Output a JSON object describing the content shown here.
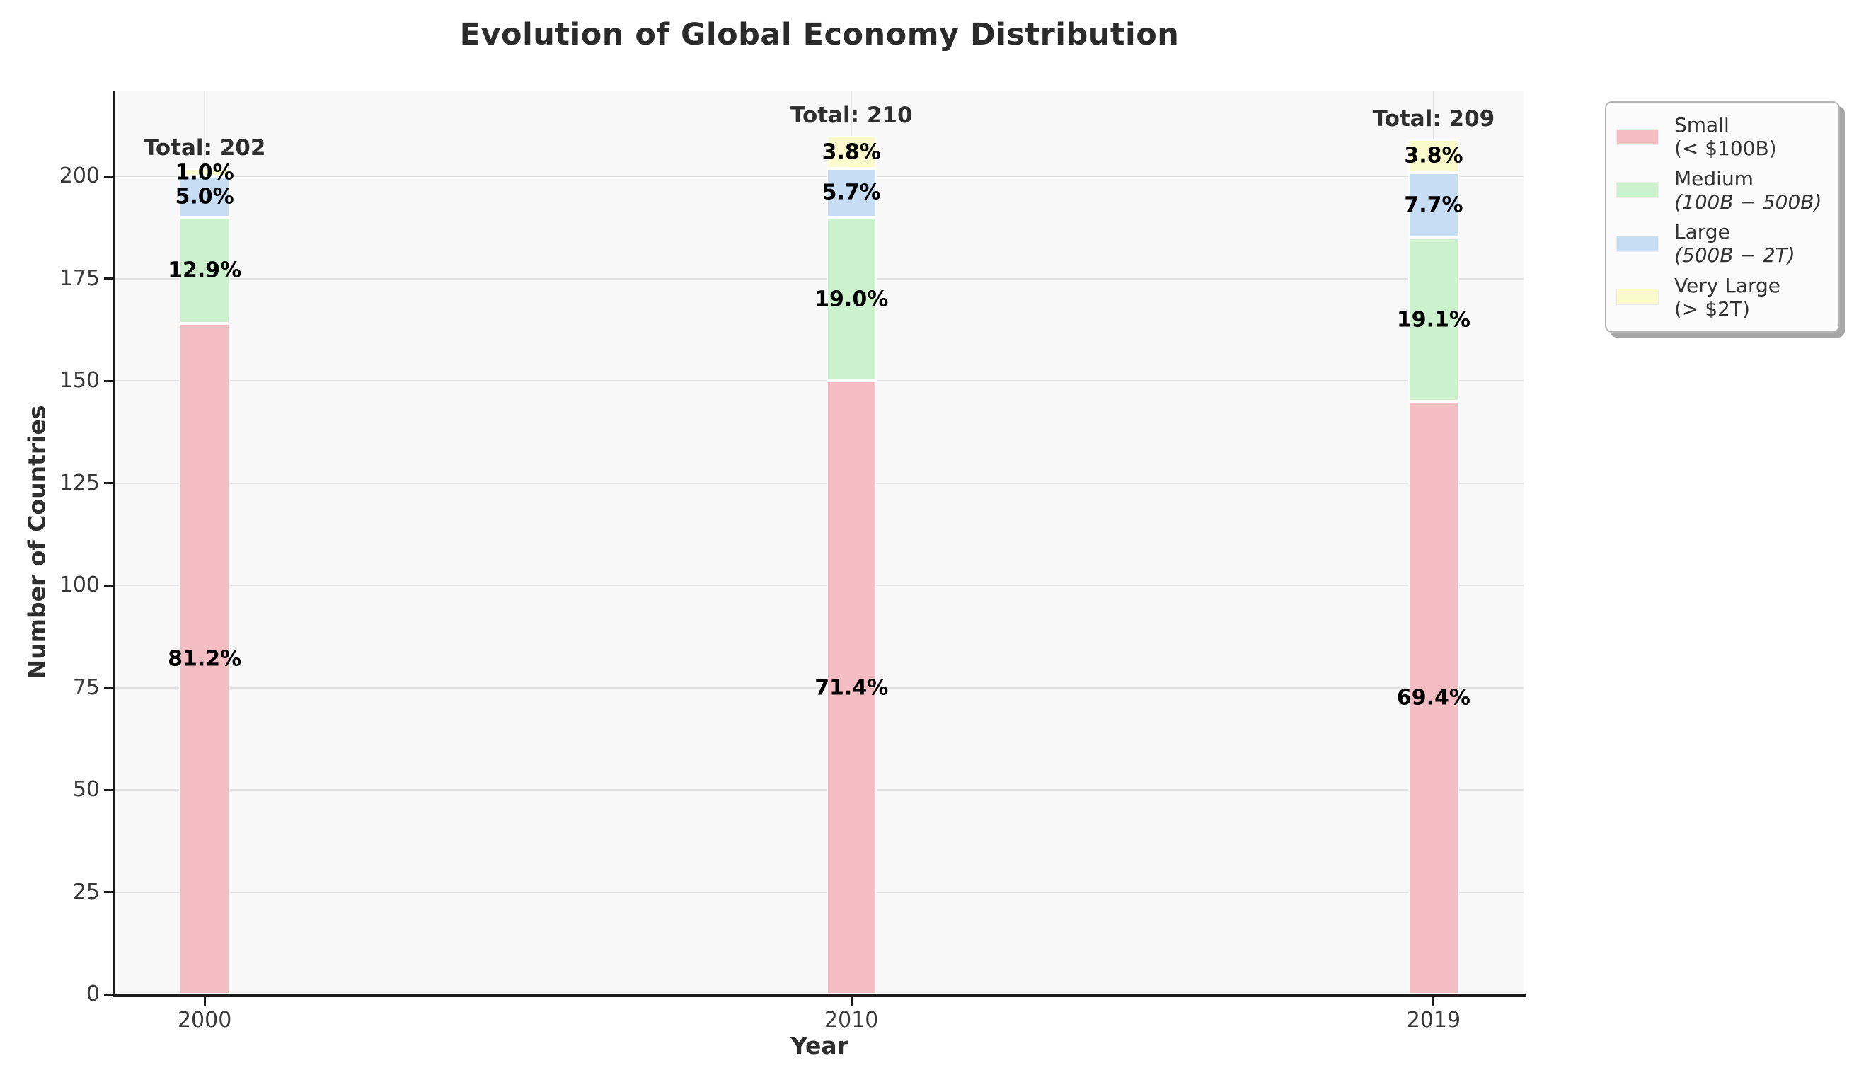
{
  "chart_data": {
    "type": "bar",
    "stacked": true,
    "title": "Evolution of Global Economy Distribution",
    "xlabel": "Year",
    "ylabel": "Number of Countries",
    "categories": [
      "2000",
      "2010",
      "2019"
    ],
    "x_years": [
      2000,
      2010,
      2019
    ],
    "xlim": [
      1998.62,
      2020.39
    ],
    "ylim": [
      0,
      221
    ],
    "yticks": [
      0,
      25,
      50,
      75,
      100,
      125,
      150,
      175,
      200
    ],
    "bar_width_years": 0.78,
    "grid": true,
    "plot_bg": "#f8f8f8",
    "grid_color": "#e1e1e1",
    "legend_position": "outside-upper-right",
    "totals": [
      202,
      210,
      209
    ],
    "total_prefix": "Total: ",
    "total_offset_units": 5,
    "series": [
      {
        "name": "Small (< $100B)",
        "color": "#f4bcc3",
        "values": [
          164,
          150,
          145
        ],
        "pct_labels": [
          "81.2%",
          "71.4%",
          "69.4%"
        ]
      },
      {
        "name": "Medium (100B − 500B)",
        "color": "#cbf2cd",
        "values": [
          26,
          40,
          40
        ],
        "pct_labels": [
          "12.9%",
          "19.0%",
          "19.1%"
        ]
      },
      {
        "name": "Large (500B − 2T)",
        "color": "#c7ddf4",
        "values": [
          10,
          12,
          16
        ],
        "pct_labels": [
          "5.0%",
          "5.7%",
          "7.7%"
        ]
      },
      {
        "name": "Very Large (> $2T)",
        "color": "#fafacd",
        "values": [
          2,
          8,
          8
        ],
        "pct_labels": [
          "1.0%",
          "3.8%",
          "3.8%"
        ]
      }
    ],
    "legend_items": [
      {
        "line1": "Small",
        "line2": "(< $100B)",
        "math_italic": false
      },
      {
        "line1": "Medium",
        "line2": "(100B − 500B)",
        "math_italic": true
      },
      {
        "line1": "Large",
        "line2": "(500B − 2T)",
        "math_italic": true
      },
      {
        "line1": "Very Large",
        "line2": "(> $2T)",
        "math_italic": false
      }
    ]
  }
}
